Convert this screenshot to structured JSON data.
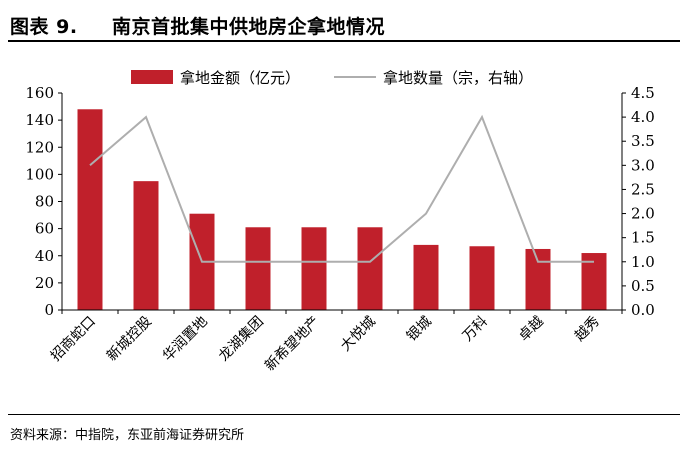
{
  "figure": {
    "prefix": "图表 9.",
    "title": "南京首批集中供地房企拿地情况"
  },
  "source": "资料来源：中指院，东亚前海证券研究所",
  "colors": {
    "bar": "#C0202B",
    "line": "#AEAEAE",
    "axis": "#000000"
  },
  "chart_data": {
    "type": "bar",
    "categories": [
      "招商蛇口",
      "新城控股",
      "华润置地",
      "龙湖集团",
      "新希望地产",
      "大悦城",
      "银城",
      "万科",
      "卓越",
      "越秀"
    ],
    "series": [
      {
        "name": "拿地金额（亿元）",
        "type": "bar",
        "axis": "left",
        "values": [
          148,
          95,
          71,
          61,
          61,
          61,
          48,
          47,
          45,
          42
        ]
      },
      {
        "name": "拿地数量（宗，右轴）",
        "type": "line",
        "axis": "right",
        "values": [
          3,
          4,
          1,
          1,
          1,
          1,
          2,
          4,
          1,
          1
        ]
      }
    ],
    "y_left": {
      "min": 0,
      "max": 160,
      "step": 20,
      "ticks": [
        "0",
        "20",
        "40",
        "60",
        "80",
        "100",
        "120",
        "140",
        "160"
      ]
    },
    "y_right": {
      "min": 0,
      "max": 4.5,
      "step": 0.5,
      "ticks": [
        "0.0",
        "0.5",
        "1.0",
        "1.5",
        "2.0",
        "2.5",
        "3.0",
        "3.5",
        "4.0",
        "4.5"
      ]
    },
    "legend": "top-center",
    "grid": false
  }
}
